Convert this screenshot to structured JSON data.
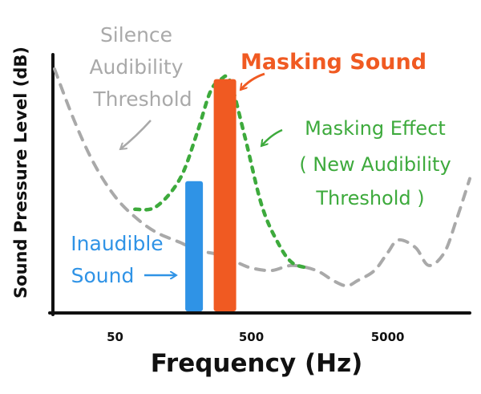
{
  "chart_data": {
    "type": "line",
    "xlabel": "Frequency (Hz)",
    "ylabel": "Sound Pressure Level (dB)",
    "x_scale": "log",
    "xlim": [
      18,
      20000
    ],
    "ylim": [
      0,
      100
    ],
    "grid": false,
    "x_ticks": [
      {
        "value": 50,
        "label": "50"
      },
      {
        "value": 500,
        "label": "500"
      },
      {
        "value": 5000,
        "label": "5000"
      }
    ],
    "series": [
      {
        "name": "Silence Audibility Threshold",
        "style": "dashed",
        "color": "#a9a9a9",
        "x": [
          18,
          25,
          35,
          50,
          70,
          100,
          150,
          200,
          300,
          400,
          500,
          700,
          1000,
          1500,
          2000,
          2500,
          3000,
          4000,
          5000,
          6000,
          8000,
          10000,
          13000,
          16000,
          20000
        ],
        "y": [
          95,
          75,
          58,
          45,
          37,
          31,
          27,
          24,
          22,
          19,
          17,
          16,
          18,
          16,
          12,
          10,
          12,
          16,
          23,
          28,
          25,
          18,
          23,
          36,
          52
        ]
      },
      {
        "name": "Masking Effect (New Audibility Threshold)",
        "style": "dashed",
        "color": "#3daa3c",
        "x": [
          70,
          100,
          150,
          200,
          250,
          300,
          350,
          450,
          600,
          800,
          1000,
          1300
        ],
        "y": [
          40,
          41,
          52,
          70,
          86,
          91,
          90,
          68,
          41,
          26,
          19,
          17
        ]
      }
    ],
    "bars": [
      {
        "name": "Inaudible Sound",
        "x": 190,
        "y": 51,
        "color": "#2f93e6"
      },
      {
        "name": "Masking Sound",
        "x": 320,
        "y": 91,
        "color": "#f05a22"
      }
    ],
    "annotations": [
      {
        "lines": [
          "Silence",
          "Audibility",
          "Threshold"
        ],
        "color": "#a9a9a9"
      },
      {
        "lines": [
          "Masking Sound"
        ],
        "color": "#f05a22"
      },
      {
        "lines": [
          "Masking Effect",
          "( New Audibility",
          "Threshold )"
        ],
        "color": "#3daa3c"
      },
      {
        "lines": [
          "Inaudible",
          "Sound"
        ],
        "color": "#2f93e6"
      }
    ]
  }
}
